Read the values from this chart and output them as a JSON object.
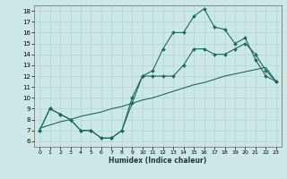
{
  "xlabel": "Humidex (Indice chaleur)",
  "x_ticks": [
    0,
    1,
    2,
    3,
    4,
    5,
    6,
    7,
    8,
    9,
    10,
    11,
    12,
    13,
    14,
    15,
    16,
    17,
    18,
    19,
    20,
    21,
    22,
    23
  ],
  "y_ticks": [
    6,
    7,
    8,
    9,
    10,
    11,
    12,
    13,
    14,
    15,
    16,
    17,
    18
  ],
  "xlim": [
    -0.5,
    23.5
  ],
  "ylim": [
    5.5,
    18.5
  ],
  "bg_color": "#cce8e5",
  "grid_color": "#b0d4d0",
  "line_color": "#1a6b5a",
  "line1_x": [
    0,
    1,
    2,
    3,
    4,
    5,
    6,
    7,
    8,
    9,
    10,
    11,
    12,
    13,
    14,
    15,
    16,
    17,
    18,
    19,
    20,
    21,
    22,
    23
  ],
  "line1_y": [
    7.0,
    9.0,
    8.5,
    8.0,
    7.0,
    7.0,
    6.3,
    6.3,
    7.0,
    10.0,
    12.0,
    12.5,
    14.5,
    16.0,
    16.0,
    17.5,
    18.2,
    16.5,
    16.3,
    15.0,
    15.5,
    13.5,
    12.0,
    11.5
  ],
  "line2_x": [
    0,
    1,
    2,
    3,
    4,
    5,
    6,
    7,
    8,
    9,
    10,
    11,
    12,
    13,
    14,
    15,
    16,
    17,
    18,
    19,
    20,
    21,
    22,
    23
  ],
  "line2_y": [
    7.0,
    9.0,
    8.5,
    8.0,
    7.0,
    7.0,
    6.3,
    6.3,
    7.0,
    9.5,
    12.0,
    12.0,
    12.0,
    12.0,
    13.0,
    14.5,
    14.5,
    14.0,
    14.0,
    14.5,
    15.0,
    14.0,
    12.5,
    11.5
  ],
  "line3_x": [
    0,
    1,
    2,
    3,
    4,
    5,
    6,
    7,
    8,
    9,
    10,
    11,
    12,
    13,
    14,
    15,
    16,
    17,
    18,
    19,
    20,
    21,
    22,
    23
  ],
  "line3_y": [
    7.2,
    7.5,
    7.8,
    8.0,
    8.3,
    8.5,
    8.7,
    9.0,
    9.2,
    9.5,
    9.8,
    10.0,
    10.3,
    10.6,
    10.9,
    11.2,
    11.4,
    11.7,
    12.0,
    12.2,
    12.4,
    12.6,
    12.8,
    11.5
  ]
}
